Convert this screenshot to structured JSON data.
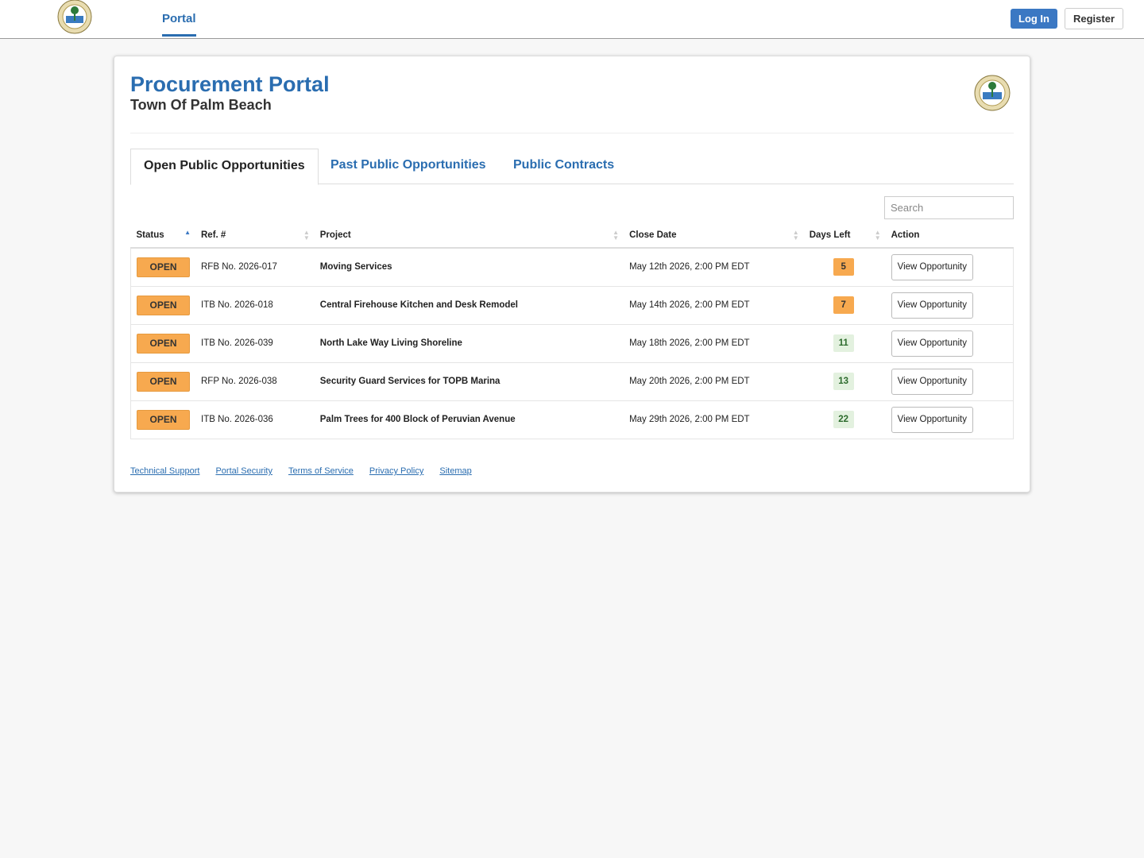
{
  "nav": {
    "portal": "Portal",
    "login": "Log In",
    "register": "Register"
  },
  "header": {
    "title": "Procurement Portal",
    "subtitle": "Town Of Palm Beach"
  },
  "tabs": [
    "Open Public Opportunities",
    "Past Public Opportunities",
    "Public Contracts"
  ],
  "search": {
    "placeholder": "Search"
  },
  "table": {
    "columns": [
      "Status",
      "Ref. #",
      "Project",
      "Close Date",
      "Days Left",
      "Action"
    ],
    "rows": [
      {
        "status": "OPEN",
        "ref": "RFB No. 2026-017",
        "project": "Moving Services",
        "close_date": "May 12th 2026, 2:00 PM EDT",
        "days_left": 5,
        "days_color": "#f7a94f",
        "action": "View Opportunity"
      },
      {
        "status": "OPEN",
        "ref": "ITB No. 2026-018",
        "project": "Central Firehouse Kitchen and Desk Remodel",
        "close_date": "May 14th 2026, 2:00 PM EDT",
        "days_left": 7,
        "days_color": "#f7a94f",
        "action": "View Opportunity"
      },
      {
        "status": "OPEN",
        "ref": "ITB No. 2026-039",
        "project": "North Lake Way Living Shoreline",
        "close_date": "May 18th 2026, 2:00 PM EDT",
        "days_left": 11,
        "days_color": "#e3f1df",
        "action": "View Opportunity"
      },
      {
        "status": "OPEN",
        "ref": "RFP No. 2026-038",
        "project": "Security Guard Services for TOPB Marina",
        "close_date": "May 20th 2026, 2:00 PM EDT",
        "days_left": 13,
        "days_color": "#e3f1df",
        "action": "View Opportunity"
      },
      {
        "status": "OPEN",
        "ref": "ITB No. 2026-036",
        "project": "Palm Trees for 400 Block of Peruvian Avenue",
        "close_date": "May 29th 2026, 2:00 PM EDT",
        "days_left": 22,
        "days_color": "#e3f1df",
        "action": "View Opportunity"
      }
    ]
  },
  "footer": [
    "Technical Support",
    "Portal Security",
    "Terms of Service",
    "Privacy Policy",
    "Sitemap"
  ]
}
